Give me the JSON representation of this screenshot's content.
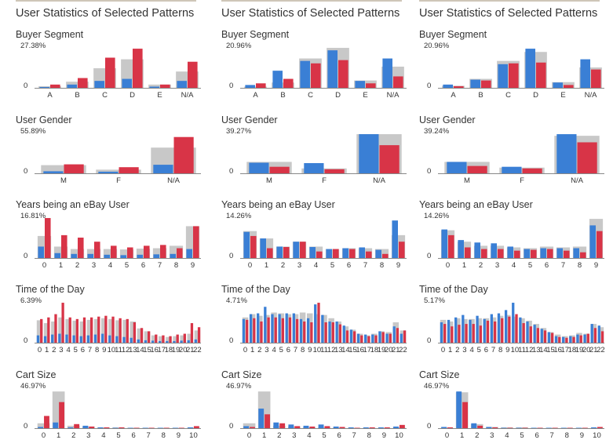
{
  "panel_title": "User Statistics of Selected Patterns",
  "colors": {
    "gray": "#c8c8c8",
    "blue": "#3a7fd5",
    "red": "#d83447",
    "axis": "#888888"
  },
  "categories": {
    "segment": [
      "A",
      "B",
      "C",
      "D",
      "E",
      "N/A"
    ],
    "gender": [
      "M",
      "F",
      "N/A"
    ],
    "years": [
      "0",
      "1",
      "2",
      "3",
      "4",
      "5",
      "6",
      "7",
      "8",
      "9"
    ],
    "hours": [
      "0",
      "1",
      "2",
      "3",
      "4",
      "5",
      "6",
      "7",
      "8",
      "9",
      "10",
      "11",
      "12",
      "13",
      "14",
      "15",
      "16",
      "17",
      "18",
      "19",
      "20",
      "21",
      "22"
    ],
    "cart": [
      "0",
      "1",
      "2",
      "3",
      "4",
      "5",
      "6",
      "7",
      "8",
      "9",
      "10"
    ]
  },
  "chart_data": [
    {
      "type": "bar",
      "title": "User Statistics of Selected Patterns",
      "charts": [
        {
          "key": "segment",
          "title": "Buyer Segment",
          "max_label": "27.38%",
          "zero_label": "0",
          "cat": "segment",
          "ymax": 1,
          "series": [
            {
              "values": [
                0.04,
                0.15,
                0.48,
                0.7,
                0.08,
                0.4
              ]
            },
            {
              "values": [
                0.02,
                0.08,
                0.17,
                0.22,
                0.03,
                0.17
              ]
            },
            {
              "values": [
                0.08,
                0.24,
                0.74,
                0.96,
                0.08,
                0.64
              ]
            }
          ]
        },
        {
          "key": "gender",
          "title": "User Gender",
          "max_label": "55.89%",
          "zero_label": "0",
          "cat": "gender",
          "ymax": 1,
          "series": [
            {
              "values": [
                0.2,
                0.09,
                0.63
              ]
            },
            {
              "values": [
                0.05,
                0.04,
                0.21
              ]
            },
            {
              "values": [
                0.22,
                0.15,
                0.89
              ]
            }
          ]
        },
        {
          "key": "years",
          "title": "Years being an eBay User",
          "max_label": "16.81%",
          "zero_label": "0",
          "cat": "years",
          "ymax": 1,
          "series": [
            {
              "values": [
                0.54,
                0.28,
                0.22,
                0.22,
                0.22,
                0.21,
                0.23,
                0.24,
                0.3,
                0.78
              ]
            },
            {
              "values": [
                0.28,
                0.12,
                0.1,
                0.1,
                0.08,
                0.07,
                0.08,
                0.09,
                0.1,
                0.22
              ]
            },
            {
              "values": [
                0.98,
                0.56,
                0.5,
                0.4,
                0.3,
                0.26,
                0.3,
                0.32,
                0.24,
                0.78
              ]
            }
          ]
        },
        {
          "key": "hours",
          "title": "Time of the Day",
          "max_label": "6.39%",
          "zero_label": "0",
          "cat": "hours",
          "ymax": 1,
          "series": [
            {
              "values": [
                0.55,
                0.48,
                0.52,
                0.62,
                0.58,
                0.54,
                0.52,
                0.56,
                0.58,
                0.6,
                0.58,
                0.55,
                0.56,
                0.52,
                0.35,
                0.28,
                0.18,
                0.16,
                0.14,
                0.16,
                0.18,
                0.22,
                0.3
              ]
            },
            {
              "values": [
                0.18,
                0.16,
                0.2,
                0.22,
                0.2,
                0.18,
                0.16,
                0.18,
                0.2,
                0.22,
                0.18,
                0.16,
                0.14,
                0.12,
                0.08,
                0.06,
                0.05,
                0.04,
                0.04,
                0.04,
                0.05,
                0.06,
                0.08
              ]
            },
            {
              "values": [
                0.58,
                0.62,
                0.7,
                0.98,
                0.62,
                0.58,
                0.62,
                0.62,
                0.64,
                0.66,
                0.64,
                0.6,
                0.58,
                0.5,
                0.36,
                0.28,
                0.2,
                0.18,
                0.16,
                0.2,
                0.22,
                0.48,
                0.38
              ]
            }
          ]
        },
        {
          "key": "cart",
          "title": "Cart Size",
          "max_label": "46.97%",
          "zero_label": "0",
          "cat": "cart",
          "ymax": 1,
          "series": [
            {
              "values": [
                0.12,
                0.9,
                0.06,
                0.04,
                0.02,
                0.02,
                0.01,
                0.01,
                0.01,
                0.01,
                0.02
              ]
            },
            {
              "values": [
                0.03,
                0.14,
                0.02,
                0.06,
                0.02,
                0.01,
                0.01,
                0.01,
                0.01,
                0.01,
                0.02
              ]
            },
            {
              "values": [
                0.3,
                0.64,
                0.1,
                0.04,
                0.02,
                0.02,
                0.01,
                0.01,
                0.01,
                0.01,
                0.05
              ]
            }
          ]
        }
      ]
    },
    {
      "type": "bar",
      "title": "User Statistics of Selected Patterns",
      "charts": [
        {
          "key": "segment",
          "title": "Buyer Segment",
          "max_label": "20.96%",
          "zero_label": "0",
          "cat": "segment",
          "ymax": 1,
          "series": [
            {
              "values": [
                0.03,
                0.13,
                0.72,
                0.98,
                0.18,
                0.52
              ]
            },
            {
              "values": [
                0.07,
                0.42,
                0.66,
                0.92,
                0.17,
                0.72
              ]
            },
            {
              "values": [
                0.11,
                0.22,
                0.6,
                0.68,
                0.11,
                0.28
              ]
            }
          ]
        },
        {
          "key": "gender",
          "title": "User Gender",
          "max_label": "39.27%",
          "zero_label": "0",
          "cat": "gender",
          "ymax": 1,
          "series": [
            {
              "values": [
                0.28,
                0.12,
                0.96
              ]
            },
            {
              "values": [
                0.26,
                0.25,
                0.96
              ]
            },
            {
              "values": [
                0.16,
                0.1,
                0.69
              ]
            }
          ]
        },
        {
          "key": "years",
          "title": "Years being an eBay User",
          "max_label": "14.26%",
          "zero_label": "0",
          "cat": "years",
          "ymax": 1,
          "series": [
            {
              "values": [
                0.66,
                0.48,
                0.28,
                0.4,
                0.28,
                0.22,
                0.24,
                0.24,
                0.22,
                0.56
              ]
            },
            {
              "values": [
                0.64,
                0.48,
                0.28,
                0.4,
                0.27,
                0.22,
                0.24,
                0.26,
                0.2,
                0.92
              ]
            },
            {
              "values": [
                0.54,
                0.24,
                0.27,
                0.4,
                0.16,
                0.22,
                0.22,
                0.16,
                0.1,
                0.4
              ]
            }
          ]
        },
        {
          "key": "hours",
          "title": "Time of the Day",
          "max_label": "4.71%",
          "zero_label": "0",
          "cat": "hours",
          "ymax": 1,
          "series": [
            {
              "values": [
                0.62,
                0.7,
                0.66,
                0.68,
                0.74,
                0.72,
                0.7,
                0.7,
                0.74,
                0.72,
                0.7,
                0.68,
                0.6,
                0.52,
                0.4,
                0.32,
                0.22,
                0.18,
                0.22,
                0.28,
                0.26,
                0.5,
                0.3
              ]
            },
            {
              "values": [
                0.58,
                0.7,
                0.72,
                0.88,
                0.7,
                0.7,
                0.72,
                0.72,
                0.58,
                0.6,
                0.94,
                0.68,
                0.52,
                0.52,
                0.42,
                0.32,
                0.22,
                0.2,
                0.2,
                0.28,
                0.22,
                0.4,
                0.22
              ]
            },
            {
              "values": [
                0.56,
                0.6,
                0.52,
                0.62,
                0.62,
                0.6,
                0.62,
                0.58,
                0.52,
                0.5,
                0.98,
                0.5,
                0.5,
                0.45,
                0.3,
                0.28,
                0.18,
                0.16,
                0.18,
                0.26,
                0.22,
                0.36,
                0.3
              ]
            }
          ]
        },
        {
          "key": "cart",
          "title": "Cart Size",
          "max_label": "46.97%",
          "zero_label": "0",
          "cat": "cart",
          "ymax": 1,
          "series": [
            {
              "values": [
                0.12,
                0.9,
                0.06,
                0.04,
                0.02,
                0.02,
                0.01,
                0.01,
                0.01,
                0.01,
                0.02
              ]
            },
            {
              "values": [
                0.05,
                0.48,
                0.14,
                0.09,
                0.06,
                0.09,
                0.04,
                0.02,
                0.02,
                0.02,
                0.04
              ]
            },
            {
              "values": [
                0.03,
                0.34,
                0.12,
                0.05,
                0.04,
                0.05,
                0.03,
                0.01,
                0.02,
                0.02,
                0.08
              ]
            }
          ]
        }
      ]
    },
    {
      "type": "bar",
      "title": "User Statistics of Selected Patterns",
      "charts": [
        {
          "key": "segment",
          "title": "Buyer Segment",
          "max_label": "20.96%",
          "zero_label": "0",
          "cat": "segment",
          "ymax": 1,
          "series": [
            {
              "values": [
                0.05,
                0.22,
                0.66,
                0.88,
                0.14,
                0.5
              ]
            },
            {
              "values": [
                0.08,
                0.2,
                0.58,
                0.96,
                0.13,
                0.7
              ]
            },
            {
              "values": [
                0.04,
                0.18,
                0.6,
                0.62,
                0.07,
                0.45
              ]
            }
          ]
        },
        {
          "key": "gender",
          "title": "User Gender",
          "max_label": "39.24%",
          "zero_label": "0",
          "cat": "gender",
          "ymax": 1,
          "series": [
            {
              "values": [
                0.28,
                0.14,
                0.92
              ]
            },
            {
              "values": [
                0.28,
                0.16,
                0.96
              ]
            },
            {
              "values": [
                0.18,
                0.12,
                0.76
              ]
            }
          ]
        },
        {
          "key": "years",
          "title": "Years being an eBay User",
          "max_label": "14.26%",
          "zero_label": "0",
          "cat": "years",
          "ymax": 1,
          "series": [
            {
              "values": [
                0.68,
                0.4,
                0.3,
                0.3,
                0.26,
                0.24,
                0.28,
                0.26,
                0.28,
                0.96
              ]
            },
            {
              "values": [
                0.7,
                0.44,
                0.38,
                0.36,
                0.28,
                0.22,
                0.24,
                0.24,
                0.24,
                0.8
              ]
            },
            {
              "values": [
                0.56,
                0.26,
                0.22,
                0.22,
                0.18,
                0.2,
                0.22,
                0.18,
                0.14,
                0.66
              ]
            }
          ]
        },
        {
          "key": "hours",
          "title": "Time of the Day",
          "max_label": "5.17%",
          "zero_label": "0",
          "cat": "hours",
          "ymax": 1,
          "series": [
            {
              "values": [
                0.56,
                0.52,
                0.6,
                0.58,
                0.58,
                0.6,
                0.6,
                0.62,
                0.66,
                0.68,
                0.64,
                0.6,
                0.54,
                0.46,
                0.36,
                0.26,
                0.2,
                0.16,
                0.18,
                0.24,
                0.22,
                0.46,
                0.38
              ]
            },
            {
              "values": [
                0.5,
                0.56,
                0.62,
                0.68,
                0.56,
                0.66,
                0.58,
                0.7,
                0.72,
                0.8,
                0.98,
                0.62,
                0.52,
                0.44,
                0.34,
                0.26,
                0.16,
                0.14,
                0.16,
                0.2,
                0.2,
                0.46,
                0.42
              ]
            },
            {
              "values": [
                0.46,
                0.4,
                0.44,
                0.46,
                0.46,
                0.42,
                0.54,
                0.52,
                0.6,
                0.64,
                0.7,
                0.48,
                0.4,
                0.36,
                0.3,
                0.24,
                0.14,
                0.12,
                0.14,
                0.18,
                0.22,
                0.36,
                0.28
              ]
            }
          ]
        },
        {
          "key": "cart",
          "title": "Cart Size",
          "max_label": "46.97%",
          "zero_label": "0",
          "cat": "cart",
          "ymax": 1,
          "series": [
            {
              "values": [
                0.02,
                0.88,
                0.1,
                0.03,
                0.02,
                0.02,
                0.01,
                0.01,
                0.01,
                0.01,
                0.01
              ]
            },
            {
              "values": [
                0.03,
                0.9,
                0.12,
                0.03,
                0.01,
                0.01,
                0.01,
                0.01,
                0.01,
                0.01,
                0.02
              ]
            },
            {
              "values": [
                0.02,
                0.64,
                0.06,
                0.02,
                0.01,
                0.01,
                0.01,
                0.01,
                0.01,
                0.01,
                0.03
              ]
            }
          ]
        }
      ]
    }
  ]
}
